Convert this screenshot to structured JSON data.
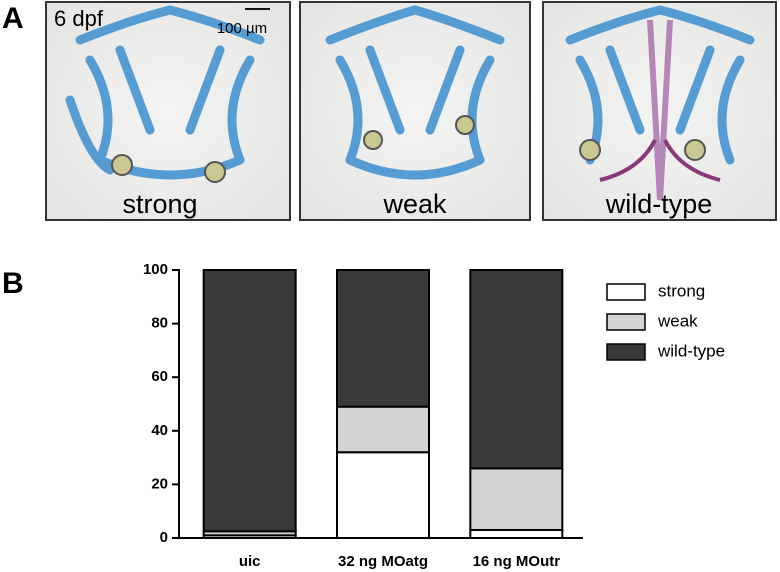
{
  "panel_a": {
    "label": "A",
    "stage": "6 dpf",
    "scale_bar": "100 µm",
    "images": [
      {
        "label": "strong"
      },
      {
        "label": "weak"
      },
      {
        "label": "wild-type"
      }
    ]
  },
  "chart_data": {
    "type": "stacked_bar",
    "panel_label": "B",
    "categories": [
      "uic",
      "32 ng MOatg",
      "16 ng MOutr"
    ],
    "series": [
      {
        "name": "strong",
        "color": "#ffffff",
        "values": [
          1,
          32,
          3
        ]
      },
      {
        "name": "weak",
        "color": "#d3d3d3",
        "values": [
          1.5,
          17,
          23
        ]
      },
      {
        "name": "wild-type",
        "color": "#3a3a3a",
        "values": [
          97.5,
          51,
          74
        ]
      }
    ],
    "ylim": [
      0,
      100
    ],
    "yticks": [
      0,
      20,
      40,
      60,
      80,
      100
    ],
    "legend": "right"
  }
}
